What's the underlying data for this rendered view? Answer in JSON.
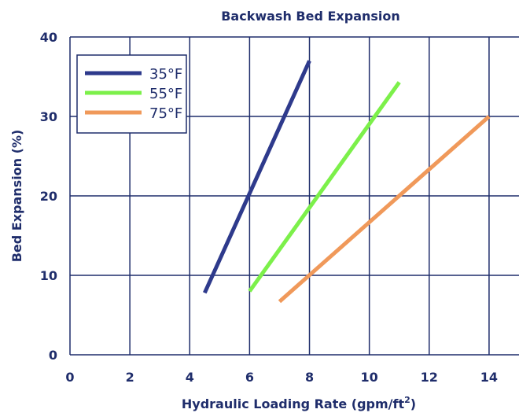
{
  "chart_data": {
    "type": "line",
    "title": "Backwash Bed Expansion",
    "xlabel": "Hydraulic Loading Rate (gpm/ft",
    "xlabel_sup": "2",
    "xlabel_end": ")",
    "ylabel": "Bed Expansion (%)",
    "xlim": [
      0,
      15
    ],
    "ylim": [
      0,
      40
    ],
    "xticks": [
      0,
      2,
      4,
      6,
      8,
      10,
      12,
      14
    ],
    "yticks": [
      0,
      10,
      20,
      30,
      40
    ],
    "grid": true,
    "legend_position": "top-left",
    "series": [
      {
        "name": "35°F",
        "color": "#2e3a8c",
        "x": [
          4.5,
          8.0
        ],
        "y": [
          7.8,
          37.0
        ]
      },
      {
        "name": "55°F",
        "color": "#7cf04a",
        "x": [
          6.0,
          11.0
        ],
        "y": [
          8.0,
          34.3
        ]
      },
      {
        "name": "75°F",
        "color": "#f0995a",
        "x": [
          7.0,
          14.0
        ],
        "y": [
          6.7,
          30.0
        ]
      }
    ]
  }
}
